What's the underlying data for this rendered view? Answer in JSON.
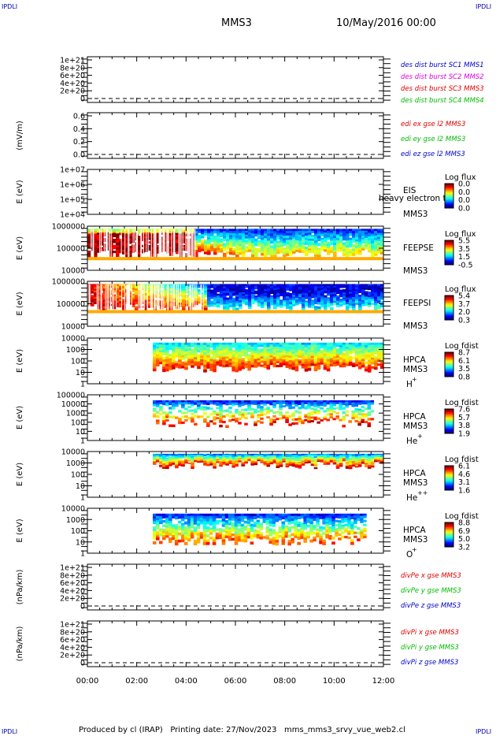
{
  "corners": {
    "tl": "IPDLI",
    "tr": "IPDLI",
    "bl": "IPDLI",
    "br": "IPDLI"
  },
  "header": {
    "mission": "MMS3",
    "date": "10/May/2016 00:00"
  },
  "footer": {
    "text": "Produced by cl (IRAP)   Printing date: 27/Nov/2023   mms_mms3_srvy_vue_web2.cl"
  },
  "xaxis": {
    "ticks": [
      "00:00",
      "02:00",
      "04:00",
      "06:00",
      "08:00",
      "10:00",
      "12:00"
    ]
  },
  "colors": {
    "red": "#dd0000",
    "magenta": "#dd00dd",
    "green": "#00bb00",
    "blue": "#0000cc"
  },
  "chart_data": [
    {
      "type": "line",
      "panel": "des-dist-burst",
      "ylabel": "",
      "yticks": [
        "1e+21",
        "8e+20",
        "6e+20",
        "4e+20",
        "2e+20",
        "0"
      ],
      "legend": [
        {
          "text": "des dist burst SC1 MMS1",
          "color": "#0000cc"
        },
        {
          "text": "des dist burst SC2 MMS2",
          "color": "#dd00dd"
        },
        {
          "text": "des dist burst SC3 MMS3",
          "color": "#dd0000"
        },
        {
          "text": "des dist burst SC4 MMS4",
          "color": "#00bb00"
        }
      ],
      "series": [],
      "zero_line": true
    },
    {
      "type": "line",
      "panel": "edi-e",
      "ylabel": "(mV/m)",
      "yticks": [
        "0.6",
        "0.4",
        "0.2",
        "0.0"
      ],
      "legend": [
        {
          "text": "edi ex gse l2 MMS3",
          "color": "#dd0000"
        },
        {
          "text": "edi ey gse l2 MMS3",
          "color": "#00bb00"
        },
        {
          "text": "edi ez gse l2 MMS3",
          "color": "#0000cc"
        }
      ],
      "series": [],
      "zero_line": true
    },
    {
      "type": "heatmap",
      "panel": "eis",
      "ylabel": "E (eV)",
      "yticks": [
        "1e+07",
        "1e+06",
        "1e+05",
        "1e+04"
      ],
      "instrument": [
        "EIS",
        "MMS3"
      ],
      "overlay_text": "heavy electron to",
      "colorbar": {
        "title": "Log flux",
        "ticks": [
          "0.0",
          "0.0",
          "0.0",
          "0.0"
        ]
      },
      "coverage": []
    },
    {
      "type": "heatmap",
      "panel": "feepse",
      "ylabel": "E (eV)",
      "yticks": [
        "1000000",
        "100000",
        "10000"
      ],
      "instrument": [
        "FEEPSE",
        "MMS3"
      ],
      "colorbar": {
        "title": "Log flux",
        "ticks": [
          "5.5",
          "3.5",
          "1.5",
          "-0.5"
        ]
      },
      "coverage": [
        0.0,
        12.0
      ]
    },
    {
      "type": "heatmap",
      "panel": "feepsi",
      "ylabel": "E (eV)",
      "yticks": [
        "1000000",
        "100000",
        "10000"
      ],
      "instrument": [
        "FEEPSI",
        "MMS3"
      ],
      "colorbar": {
        "title": "Log flux",
        "ticks": [
          "5.4",
          "3.7",
          "2.0",
          "0.3"
        ]
      },
      "coverage": [
        0.0,
        12.0
      ]
    },
    {
      "type": "heatmap",
      "panel": "hpca-h",
      "ylabel": "E (eV)",
      "yticks": [
        "10000",
        "1000",
        "100",
        "10",
        "1"
      ],
      "instrument": [
        "HPCA",
        "MMS3",
        "H",
        "+"
      ],
      "colorbar": {
        "title": "Log fdist",
        "ticks": [
          "8.7",
          "6.1",
          "3.5",
          "0.8"
        ]
      },
      "coverage": [
        2.65,
        12.0
      ]
    },
    {
      "type": "heatmap",
      "panel": "hpca-he",
      "ylabel": "E (eV)",
      "yticks": [
        "100000",
        "10000",
        "1000",
        "100",
        "10",
        "1"
      ],
      "instrument": [
        "HPCA",
        "MMS3",
        "He",
        "+"
      ],
      "colorbar": {
        "title": "Log fdist",
        "ticks": [
          "7.6",
          "5.7",
          "3.8",
          "1.9"
        ]
      },
      "coverage": [
        2.65,
        11.6
      ]
    },
    {
      "type": "heatmap",
      "panel": "hpca-hepp",
      "ylabel": "E (eV)",
      "yticks": [
        "10000",
        "1000",
        "100",
        "10",
        "1"
      ],
      "instrument": [
        "HPCA",
        "MMS3",
        "He",
        "++"
      ],
      "colorbar": {
        "title": "Log fdist",
        "ticks": [
          "6.1",
          "4.6",
          "3.1",
          "1.6"
        ]
      },
      "coverage": [
        2.65,
        12.0
      ]
    },
    {
      "type": "heatmap",
      "panel": "hpca-o",
      "ylabel": "E (eV)",
      "yticks": [
        "10000",
        "1000",
        "100",
        "10",
        "1"
      ],
      "instrument": [
        "HPCA",
        "MMS3",
        "O",
        "+"
      ],
      "colorbar": {
        "title": "Log fdist",
        "ticks": [
          "8.8",
          "6.9",
          "5.0",
          "3.2"
        ]
      },
      "coverage": [
        2.65,
        11.3
      ]
    },
    {
      "type": "line",
      "panel": "divpe",
      "ylabel": "(nPa/km)",
      "yticks": [
        "1e+21",
        "8e+20",
        "6e+20",
        "4e+20",
        "2e+20",
        "0"
      ],
      "legend": [
        {
          "text": "divPe x gse MMS3",
          "color": "#dd0000"
        },
        {
          "text": "divPe y gse MMS3",
          "color": "#00bb00"
        },
        {
          "text": "divPe z gse MMS3",
          "color": "#0000cc"
        }
      ],
      "series": [],
      "zero_line": true
    },
    {
      "type": "line",
      "panel": "divpi",
      "ylabel": "(nPa/km)",
      "yticks": [
        "1e+21",
        "8e+20",
        "6e+20",
        "4e+20",
        "2e+20",
        "0"
      ],
      "legend": [
        {
          "text": "divPi x gse MMS3",
          "color": "#dd0000"
        },
        {
          "text": "divPi y gse MMS3",
          "color": "#00bb00"
        },
        {
          "text": "divPi z gse MMS3",
          "color": "#0000cc"
        }
      ],
      "series": [],
      "zero_line": true
    }
  ]
}
